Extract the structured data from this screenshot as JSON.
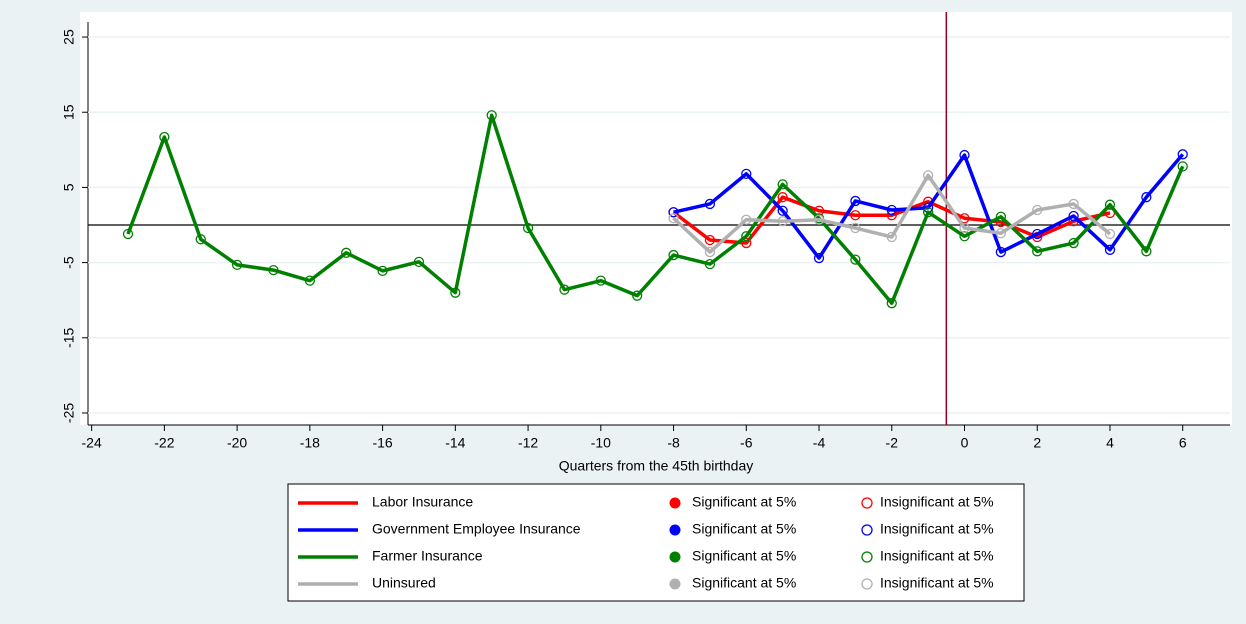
{
  "chart_data": {
    "type": "line",
    "x_label": "Quarters from the 45th birthday",
    "x": [
      -23,
      -22,
      -21,
      -20,
      -19,
      -18,
      -17,
      -16,
      -15,
      -14,
      -13,
      -12,
      -11,
      -10,
      -9,
      -8,
      -7,
      -6,
      -5,
      -4,
      -3,
      -2,
      -1,
      0,
      1,
      2,
      3,
      4,
      5,
      6
    ],
    "series": [
      {
        "name": "Labor Insurance",
        "color": "#ff0000",
        "sig_label": "Significant at 5%",
        "insig_label": "Insignificant at 5%",
        "marker": "hollow",
        "values": [
          null,
          null,
          null,
          null,
          null,
          null,
          null,
          null,
          null,
          null,
          null,
          null,
          null,
          null,
          null,
          1.7,
          -2.0,
          -2.4,
          3.7,
          1.9,
          1.3,
          1.3,
          3.1,
          0.9,
          0.4,
          -1.6,
          0.5,
          1.6,
          null,
          null
        ]
      },
      {
        "name": "Government Employee Insurance",
        "color": "#0000ff",
        "sig_label": "Significant at 5%",
        "insig_label": "Insignificant at 5%",
        "marker": "hollow",
        "values": [
          null,
          null,
          null,
          null,
          null,
          null,
          null,
          null,
          null,
          null,
          null,
          null,
          null,
          null,
          null,
          1.7,
          2.8,
          6.8,
          1.9,
          -4.4,
          3.2,
          2.0,
          2.3,
          9.3,
          -3.6,
          -1.2,
          1.2,
          -3.3,
          3.7,
          9.4
        ]
      },
      {
        "name": "Farmer Insurance",
        "color": "#008000",
        "sig_label": "Significant at 5%",
        "insig_label": "Insignificant at 5%",
        "marker": "hollow",
        "values": [
          -1.2,
          11.7,
          -1.9,
          -5.3,
          -6.0,
          -7.4,
          -3.7,
          -6.1,
          -4.9,
          -9.0,
          14.6,
          -0.4,
          -8.6,
          -7.4,
          -9.4,
          -4.0,
          -5.2,
          -1.5,
          5.4,
          0.9,
          -4.6,
          -10.4,
          1.7,
          -1.5,
          1.1,
          -3.5,
          -2.4,
          2.7,
          -3.5,
          7.8
        ]
      },
      {
        "name": "Uninsured",
        "color": "#b0b0b0",
        "sig_label": "Significant at 5%",
        "insig_label": "Insignificant at 5%",
        "marker": "hollow",
        "values": [
          null,
          null,
          null,
          null,
          null,
          null,
          null,
          null,
          null,
          null,
          null,
          null,
          null,
          null,
          null,
          0.9,
          -3.6,
          0.7,
          0.5,
          0.7,
          -0.4,
          -1.6,
          6.6,
          -0.4,
          -1.1,
          2.0,
          2.8,
          -1.2,
          null,
          null
        ]
      }
    ],
    "xlim": [
      -24.1,
      7.3
    ],
    "ylim": [
      -26.6,
      27
    ],
    "xticks": [
      -24,
      -22,
      -20,
      -18,
      -16,
      -14,
      -12,
      -10,
      -8,
      -6,
      -4,
      -2,
      0,
      2,
      4,
      6
    ],
    "yticks": [
      -25,
      -15,
      -5,
      5,
      15,
      25
    ],
    "grid": true,
    "hline": 0,
    "vline": -0.5,
    "vline_color": "#990022"
  }
}
